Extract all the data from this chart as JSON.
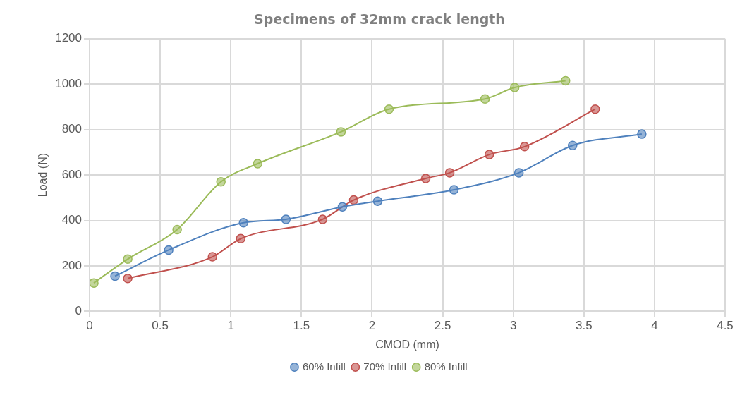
{
  "chart_data": {
    "type": "line",
    "title": "Specimens of 32mm crack length",
    "xlabel": "CMOD (mm)",
    "ylabel": "Load (N)",
    "xlim": [
      0,
      4.5
    ],
    "xticks": [
      0,
      0.5,
      1,
      1.5,
      2,
      2.5,
      3,
      3.5,
      4,
      4.5
    ],
    "ylim": [
      0,
      1200
    ],
    "yticks": [
      0,
      200,
      400,
      600,
      800,
      1000,
      1200
    ],
    "grid": true,
    "legend": "bottom",
    "marker": "circle",
    "series": [
      {
        "name": "60% Infill",
        "color": "#4f81bd",
        "x": [
          0.18,
          0.56,
          1.09,
          1.39,
          1.79,
          2.04,
          2.58,
          3.04,
          3.42,
          3.91
        ],
        "values": [
          155,
          270,
          390,
          405,
          460,
          485,
          535,
          610,
          730,
          780
        ]
      },
      {
        "name": "70% Infill",
        "color": "#c0504d",
        "x": [
          0.27,
          0.87,
          1.07,
          1.65,
          1.87,
          2.38,
          2.55,
          2.83,
          3.08,
          3.58
        ],
        "values": [
          145,
          240,
          320,
          405,
          490,
          585,
          610,
          690,
          725,
          890
        ]
      },
      {
        "name": "80% Infill",
        "color": "#9bbb59",
        "x": [
          0.03,
          0.27,
          0.62,
          0.93,
          1.19,
          1.78,
          2.12,
          2.8,
          3.01,
          3.37
        ],
        "values": [
          125,
          230,
          360,
          570,
          650,
          790,
          890,
          935,
          985,
          1015
        ]
      }
    ]
  }
}
